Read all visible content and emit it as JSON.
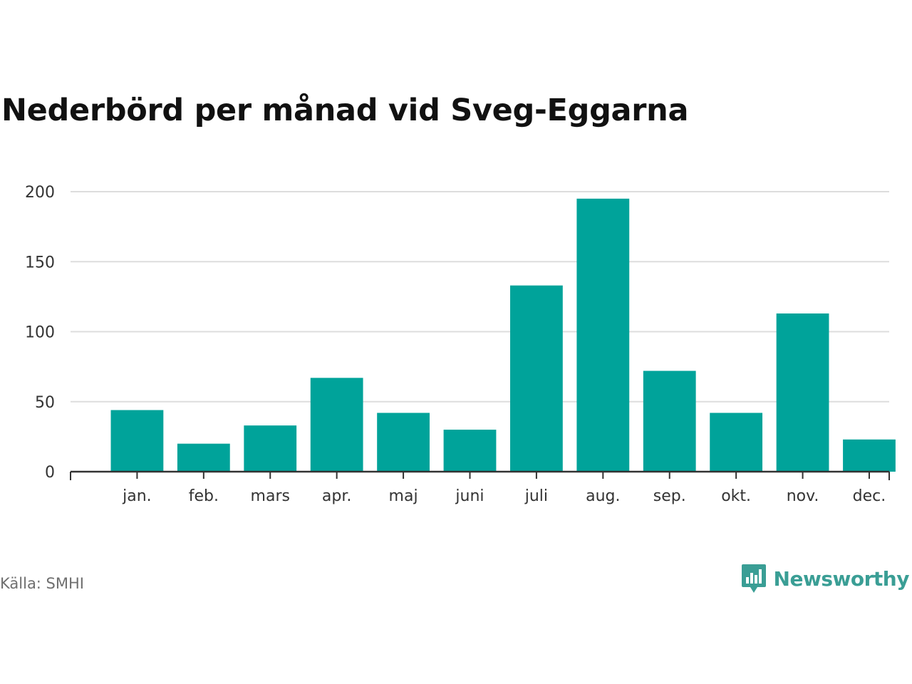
{
  "chart_data": {
    "type": "bar",
    "title": "Nederbörd per månad vid Sveg-Eggarna",
    "categories": [
      "jan.",
      "feb.",
      "mars",
      "apr.",
      "maj",
      "juni",
      "juli",
      "aug.",
      "sep.",
      "okt.",
      "nov.",
      "dec."
    ],
    "values": [
      44,
      20,
      33,
      67,
      42,
      30,
      133,
      195,
      72,
      42,
      113,
      23
    ],
    "ylim": [
      0,
      200
    ],
    "yticks": [
      0,
      50,
      100,
      150,
      200
    ],
    "grid": true,
    "bar_color": "#00a39a",
    "xlabel": "",
    "ylabel": ""
  },
  "source_text": "Källa: SMHI",
  "brand": {
    "name": "Newsworthy",
    "color": "#3a9e95",
    "icon": "bar-chart-speech-bubble-icon"
  }
}
